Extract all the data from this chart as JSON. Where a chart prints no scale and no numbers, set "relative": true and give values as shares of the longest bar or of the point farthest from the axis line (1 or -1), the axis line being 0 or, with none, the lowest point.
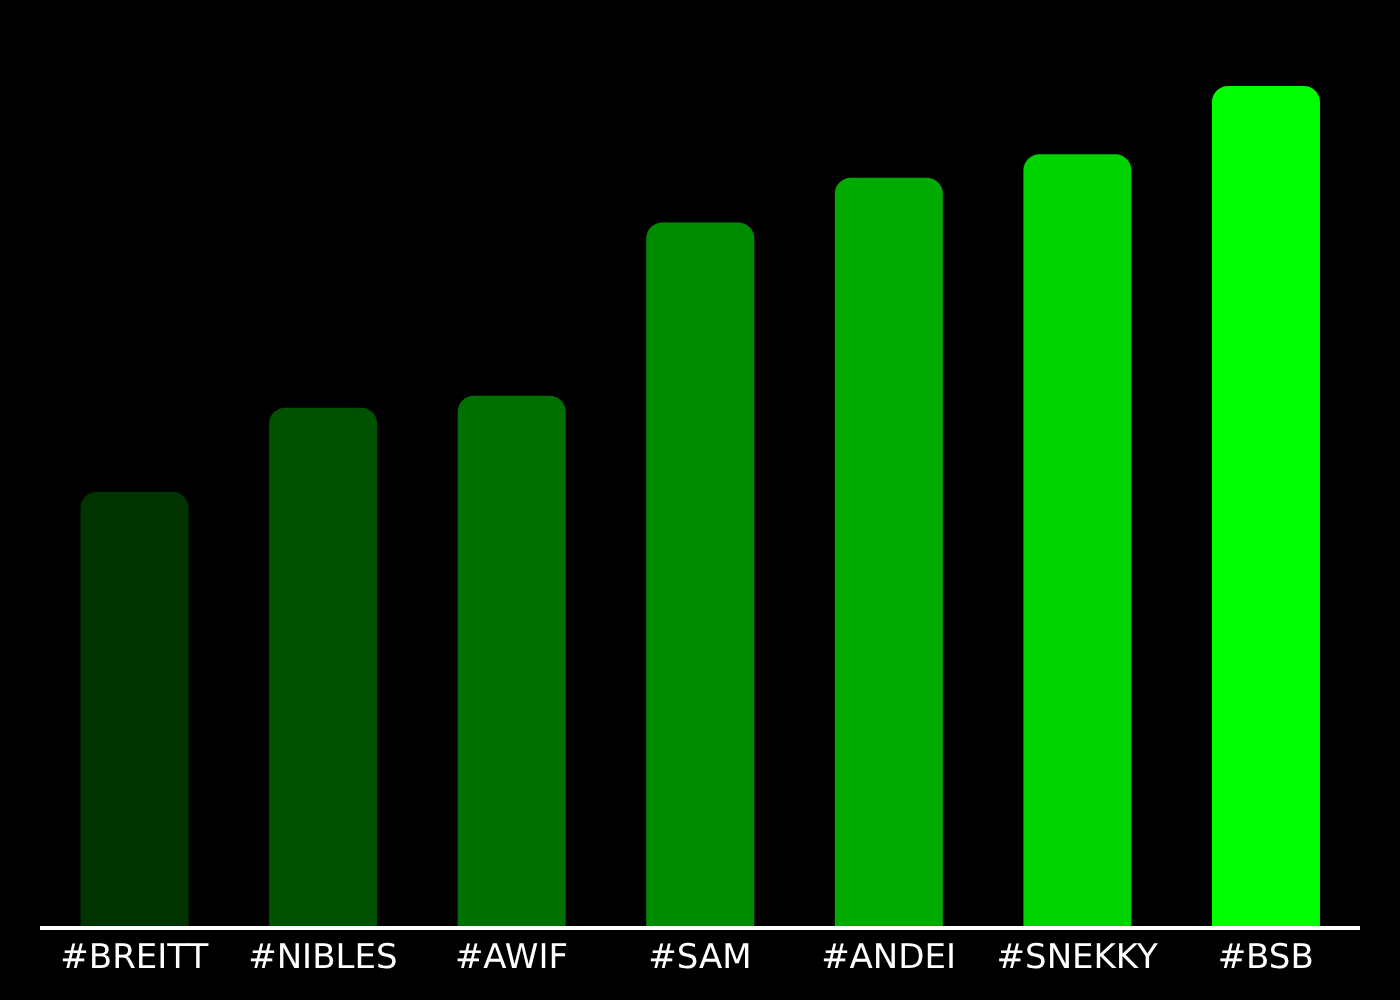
{
  "chart_data": {
    "type": "bar",
    "relative": true,
    "categories": [
      "#BREITT",
      "#NIBLES",
      "#AWIF",
      "#SAM",
      "#ANDEI",
      "#SNEKKY",
      "#BSB"
    ],
    "values": [
      0.518,
      0.618,
      0.632,
      0.838,
      0.891,
      0.919,
      1
    ],
    "colors": [
      "#003300",
      "#005200",
      "#007000",
      "#008c00",
      "#00aa00",
      "#00d400",
      "#00ff00"
    ]
  }
}
